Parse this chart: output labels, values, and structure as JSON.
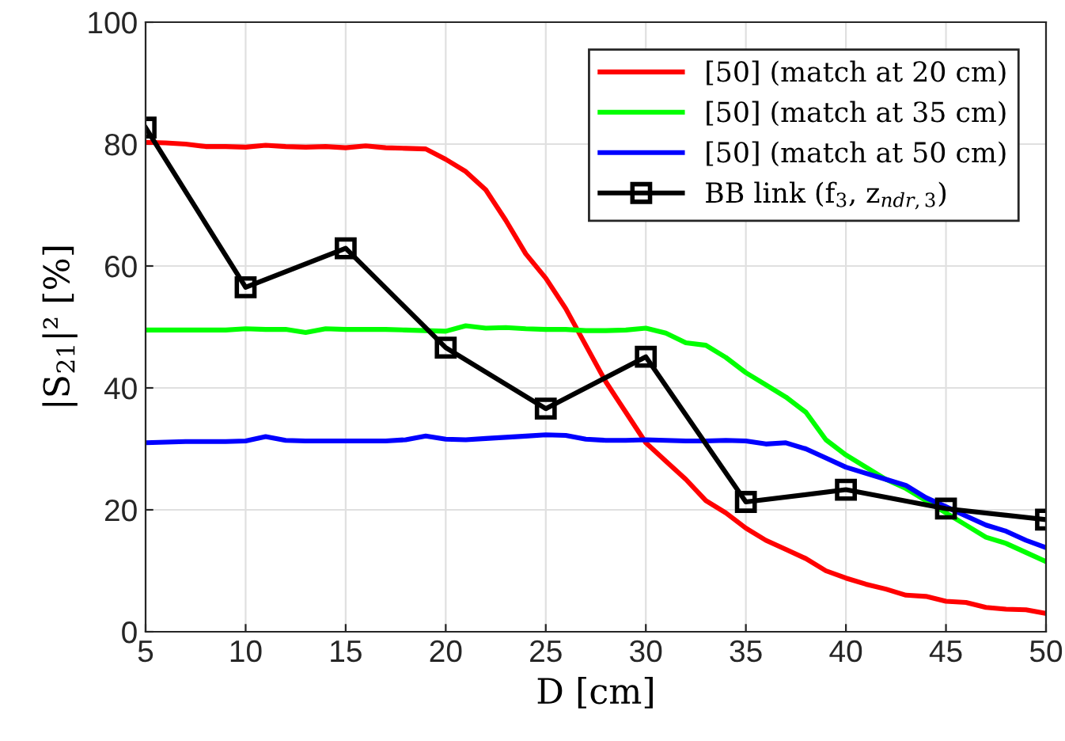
{
  "chart_data": {
    "type": "line",
    "xlabel": "D [cm]",
    "ylabel": "|S$_{21}$|² [%]",
    "xlim": [
      5,
      50
    ],
    "ylim": [
      0,
      100
    ],
    "xticks": [
      5,
      10,
      15,
      20,
      25,
      30,
      35,
      40,
      45,
      50
    ],
    "yticks": [
      0,
      20,
      40,
      60,
      80,
      100
    ],
    "grid": true,
    "legend": "top right",
    "series": [
      {
        "name": "[50] (match at 20 cm)",
        "color": "#ff0000",
        "marker": "none",
        "x": [
          5,
          6,
          7,
          8,
          9,
          10,
          11,
          12,
          13,
          14,
          15,
          16,
          17,
          18,
          19,
          20,
          21,
          22,
          23,
          24,
          25,
          26,
          27,
          28,
          29,
          30,
          31,
          32,
          33,
          34,
          35,
          36,
          37,
          38,
          39,
          40,
          41,
          42,
          43,
          44,
          45,
          46,
          47,
          48,
          49,
          50
        ],
        "values": [
          80.3,
          80.2,
          80,
          79.6,
          79.6,
          79.5,
          79.8,
          79.6,
          79.5,
          79.6,
          79.4,
          79.7,
          79.4,
          79.3,
          79.2,
          77.5,
          75.5,
          72.5,
          67.5,
          62,
          58,
          53,
          47,
          41,
          36,
          31,
          28,
          25,
          21.5,
          19.5,
          17,
          15,
          13.5,
          12,
          10,
          8.8,
          7.8,
          7,
          6,
          5.8,
          5,
          4.8,
          4,
          3.7,
          3.6,
          3
        ]
      },
      {
        "name": "[50] (match at 35 cm)",
        "color": "#00ff00",
        "marker": "none",
        "x": [
          5,
          6,
          7,
          8,
          9,
          10,
          11,
          12,
          13,
          14,
          15,
          16,
          17,
          18,
          19,
          20,
          21,
          22,
          23,
          24,
          25,
          26,
          27,
          28,
          29,
          30,
          31,
          32,
          33,
          34,
          35,
          36,
          37,
          38,
          39,
          40,
          41,
          42,
          43,
          44,
          45,
          46,
          47,
          48,
          49,
          50
        ],
        "values": [
          49.5,
          49.5,
          49.5,
          49.5,
          49.5,
          49.7,
          49.6,
          49.6,
          49.1,
          49.7,
          49.6,
          49.6,
          49.6,
          49.5,
          49.4,
          49.3,
          50.2,
          49.8,
          49.9,
          49.7,
          49.6,
          49.6,
          49.4,
          49.4,
          49.5,
          49.8,
          49,
          47.4,
          47,
          45,
          42.5,
          40.5,
          38.5,
          36,
          31.5,
          29,
          27,
          25,
          23.5,
          21.5,
          19.5,
          17.5,
          15.5,
          14.5,
          13,
          11.5
        ]
      },
      {
        "name": "[50] (match at 50 cm)",
        "color": "#0000ff",
        "marker": "none",
        "x": [
          5,
          6,
          7,
          8,
          9,
          10,
          11,
          12,
          13,
          14,
          15,
          16,
          17,
          18,
          19,
          20,
          21,
          22,
          23,
          24,
          25,
          26,
          27,
          28,
          29,
          30,
          31,
          32,
          33,
          34,
          35,
          36,
          37,
          38,
          39,
          40,
          41,
          42,
          43,
          44,
          45,
          46,
          47,
          48,
          49,
          50
        ],
        "values": [
          31,
          31.1,
          31.2,
          31.2,
          31.2,
          31.3,
          32,
          31.4,
          31.3,
          31.3,
          31.3,
          31.3,
          31.3,
          31.5,
          32.1,
          31.6,
          31.5,
          31.7,
          31.9,
          32.1,
          32.3,
          32.2,
          31.6,
          31.4,
          31.4,
          31.5,
          31.4,
          31.3,
          31.3,
          31.4,
          31.3,
          30.8,
          31,
          30,
          28.5,
          27,
          26,
          25,
          24,
          22,
          20.5,
          19,
          17.5,
          16.5,
          15,
          13.8
        ]
      },
      {
        "name": "BB link (f$_{3}$, z$_{ndr,3}$)",
        "color": "#000000",
        "marker": "square",
        "x": [
          5,
          10,
          15,
          20,
          25,
          30,
          35,
          40,
          45,
          50
        ],
        "values": [
          82.7,
          56.5,
          62.9,
          46.6,
          36.6,
          45.1,
          21.3,
          23.3,
          20.2,
          18.4
        ]
      }
    ]
  }
}
